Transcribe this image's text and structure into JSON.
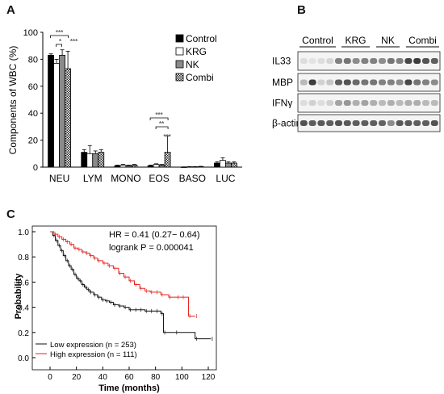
{
  "panels": {
    "a": "A",
    "b": "B",
    "c": "C"
  },
  "panel_a": {
    "ylabel": "Components of WBC (%)",
    "yticks": [
      "0",
      "20",
      "40",
      "60",
      "80",
      "100"
    ],
    "significance": [
      "***",
      "*",
      "***",
      "***",
      "**",
      "***"
    ],
    "legend_icons": [
      "solid-square",
      "open-square",
      "gray-square",
      "checker-square"
    ]
  },
  "panel_b": {
    "group_labels": [
      "Control",
      "KRG",
      "NK",
      "Combi"
    ],
    "rows": [
      "IL33",
      "MBP",
      "IFNγ",
      "β-actin"
    ]
  },
  "panel_c": {
    "ylabel": "Probability",
    "yticks": [
      "0.0",
      "0.2",
      "0.4",
      "0.6",
      "0.8",
      "1.0"
    ],
    "xticks": [
      "0",
      "20",
      "40",
      "60",
      "80",
      "100",
      "120"
    ],
    "hr_text": "HR = 0.41 (0.27− 0.64)",
    "logrank_text": "logrank P = 0.000041"
  },
  "colors": {
    "high": "#e8251f",
    "low": "#111111",
    "gray_bar": "#8a8a8a"
  },
  "chart_data": [
    {
      "type": "bar",
      "xlabel": "",
      "ylabel": "Components of WBC (%)",
      "ylim": [
        0,
        100
      ],
      "categories": [
        "NEU",
        "LYM",
        "MONO",
        "EOS",
        "BASO",
        "LUC"
      ],
      "series": [
        {
          "name": "Control",
          "values": [
            83,
            11,
            1,
            1,
            0,
            3
          ],
          "err": [
            1,
            2,
            0.5,
            0.5,
            0.2,
            1
          ]
        },
        {
          "name": "KRG",
          "values": [
            77,
            10,
            1.5,
            2,
            0.2,
            5
          ],
          "err": [
            3,
            6,
            0.5,
            0.5,
            0.2,
            2
          ]
        },
        {
          "name": "NK",
          "values": [
            83,
            10,
            1,
            1.5,
            0.2,
            3
          ],
          "err": [
            4,
            2,
            0.5,
            0.5,
            0.2,
            1
          ]
        },
        {
          "name": "Combi",
          "values": [
            73,
            11,
            1.5,
            11,
            0.3,
            3
          ],
          "err": [
            13,
            2,
            0.5,
            12,
            0.3,
            1
          ]
        }
      ],
      "legend": "top-right"
    },
    {
      "type": "line",
      "title": "",
      "xlabel": "Time (months)",
      "ylabel": "Probability",
      "xlim": [
        0,
        125
      ],
      "ylim": [
        0,
        1.05
      ],
      "series": [
        {
          "name": "Low expression (n = 253)",
          "color": "#111111",
          "x": [
            0,
            2,
            4,
            6,
            8,
            10,
            12,
            14,
            16,
            18,
            20,
            22,
            24,
            26,
            28,
            30,
            33,
            36,
            39,
            42,
            45,
            48,
            52,
            56,
            60,
            64,
            68,
            72,
            76,
            80,
            84,
            86,
            95,
            110,
            122
          ],
          "y": [
            1.0,
            0.97,
            0.93,
            0.89,
            0.85,
            0.81,
            0.77,
            0.73,
            0.7,
            0.66,
            0.63,
            0.61,
            0.58,
            0.56,
            0.54,
            0.52,
            0.5,
            0.48,
            0.46,
            0.45,
            0.44,
            0.42,
            0.41,
            0.4,
            0.38,
            0.38,
            0.38,
            0.37,
            0.37,
            0.37,
            0.35,
            0.2,
            0.2,
            0.15,
            0.15
          ]
        },
        {
          "name": "High expression (n = 111)",
          "color": "#e8251f",
          "x": [
            0,
            3,
            6,
            9,
            12,
            15,
            18,
            21,
            24,
            27,
            30,
            33,
            36,
            40,
            44,
            48,
            52,
            56,
            60,
            64,
            68,
            72,
            76,
            80,
            84,
            90,
            96,
            100,
            105,
            110
          ],
          "y": [
            1.0,
            0.98,
            0.96,
            0.94,
            0.92,
            0.9,
            0.87,
            0.86,
            0.84,
            0.83,
            0.81,
            0.79,
            0.77,
            0.75,
            0.73,
            0.71,
            0.67,
            0.64,
            0.61,
            0.58,
            0.55,
            0.53,
            0.52,
            0.52,
            0.5,
            0.48,
            0.48,
            0.48,
            0.33,
            0.33
          ]
        }
      ],
      "legend": "bottom-left"
    }
  ]
}
